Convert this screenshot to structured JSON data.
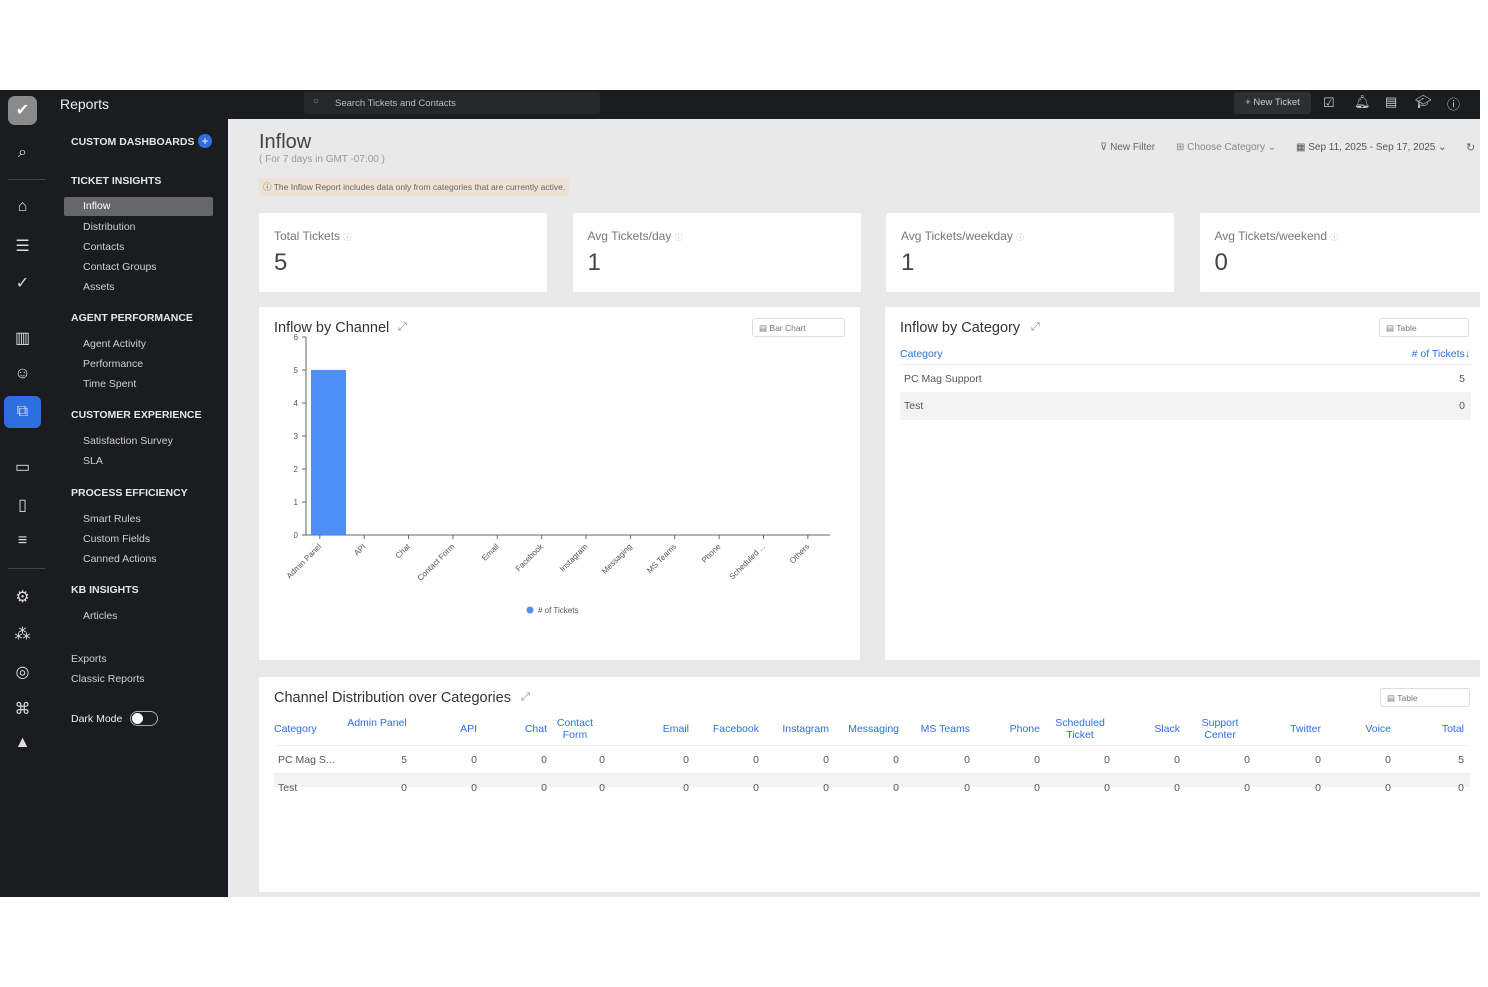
{
  "header": {
    "app_title": "Reports",
    "search_placeholder": "Search Tickets and Contacts",
    "new_ticket": "+ New Ticket"
  },
  "sidebar": {
    "custom_dashboards": "CUSTOM DASHBOARDS",
    "sections": [
      {
        "title": "TICKET INSIGHTS",
        "items": [
          "Inflow",
          "Distribution",
          "Contacts",
          "Contact Groups",
          "Assets"
        ]
      },
      {
        "title": "AGENT PERFORMANCE",
        "items": [
          "Agent Activity",
          "Performance",
          "Time Spent"
        ]
      },
      {
        "title": "CUSTOMER EXPERIENCE",
        "items": [
          "Satisfaction Survey",
          "SLA"
        ]
      },
      {
        "title": "PROCESS EFFICIENCY",
        "items": [
          "Smart Rules",
          "Custom Fields",
          "Canned Actions"
        ]
      },
      {
        "title": "KB INSIGHTS",
        "items": [
          "Articles"
        ]
      }
    ],
    "exports": "Exports",
    "classic_reports": "Classic Reports",
    "dark_mode": "Dark Mode",
    "dark_mode_on": false
  },
  "page": {
    "title": "Inflow",
    "subtitle": "( For 7 days in GMT -07:00 )",
    "notice": "ⓘ The Inflow Report includes data only from categories that are currently active.",
    "new_filter": "New Filter",
    "choose_category": "Choose Category",
    "date_range": "Sep 11, 2025 - Sep 17, 2025"
  },
  "kpis": [
    {
      "label": "Total Tickets",
      "value": "5"
    },
    {
      "label": "Avg Tickets/day",
      "value": "1"
    },
    {
      "label": "Avg Tickets/weekday",
      "value": "1"
    },
    {
      "label": "Avg Tickets/weekend",
      "value": "0"
    }
  ],
  "channel_chart": {
    "title": "Inflow by Channel",
    "view": "Bar Chart"
  },
  "chart_data": {
    "type": "bar",
    "categories": [
      "Admin Panel",
      "API",
      "Chat",
      "Contact Form",
      "Email",
      "Facebook",
      "Instagram",
      "Messaging",
      "MS Teams",
      "Phone",
      "Scheduled ...",
      "Others"
    ],
    "series": [
      {
        "name": "# of Tickets",
        "values": [
          5,
          0,
          0,
          0,
          0,
          0,
          0,
          0,
          0,
          0,
          0,
          0
        ]
      }
    ],
    "ylim": [
      0,
      6
    ],
    "yticks": [
      "0",
      "1",
      "2",
      "3",
      "4",
      "5",
      "6"
    ],
    "legend": "bottom",
    "color": "#4d8ef7"
  },
  "category_table": {
    "title": "Inflow by Category",
    "view": "Table",
    "headers": [
      "Category",
      "# of Tickets"
    ],
    "rows": [
      [
        "PC Mag Support",
        "5"
      ],
      [
        "Test",
        "0"
      ]
    ]
  },
  "distribution": {
    "title": "Channel Distribution over Categories",
    "view": "Table",
    "headers": [
      "Category",
      "Admin Panel",
      "API",
      "Chat",
      "Contact Form",
      "Email",
      "Facebook",
      "Instagram",
      "Messaging",
      "MS Teams",
      "Phone",
      "Scheduled Ticket",
      "Slack",
      "Support Center",
      "Twitter",
      "Voice",
      "Total"
    ],
    "rows": [
      [
        "PC Mag S...",
        "5",
        "0",
        "0",
        "0",
        "0",
        "0",
        "0",
        "0",
        "0",
        "0",
        "0",
        "0",
        "0",
        "0",
        "0",
        "5"
      ],
      [
        "Test",
        "0",
        "0",
        "0",
        "0",
        "0",
        "0",
        "0",
        "0",
        "0",
        "0",
        "0",
        "0",
        "0",
        "0",
        "0",
        "0"
      ]
    ]
  }
}
